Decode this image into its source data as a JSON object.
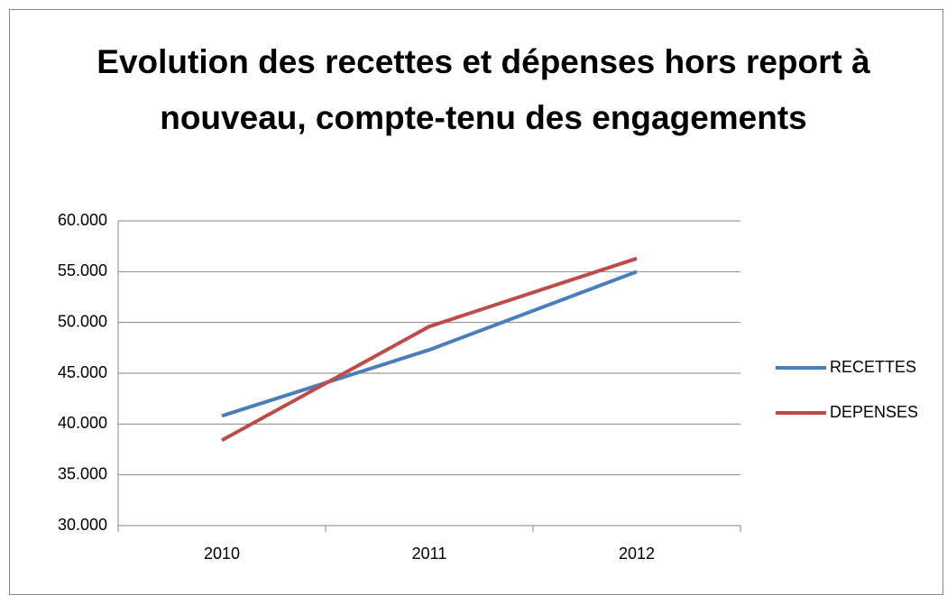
{
  "chart_data": {
    "type": "line",
    "title": "Evolution des recettes et dépenses hors report à nouveau, compte-tenu des engagements",
    "categories": [
      "2010",
      "2011",
      "2012"
    ],
    "series": [
      {
        "name": "RECETTES",
        "color": "#4a7ebb",
        "values": [
          40800,
          47300,
          55000
        ]
      },
      {
        "name": "DEPENSES",
        "color": "#be4b48",
        "values": [
          38400,
          49600,
          56300
        ]
      }
    ],
    "ylim": [
      30000,
      60000
    ],
    "yticks": [
      {
        "value": 30000,
        "label": "30.000"
      },
      {
        "value": 35000,
        "label": "35.000"
      },
      {
        "value": 40000,
        "label": "40.000"
      },
      {
        "value": 45000,
        "label": "45.000"
      },
      {
        "value": 50000,
        "label": "50.000"
      },
      {
        "value": 55000,
        "label": "55.000"
      },
      {
        "value": 60000,
        "label": "60.000"
      }
    ],
    "grid": true,
    "legend": "right"
  }
}
